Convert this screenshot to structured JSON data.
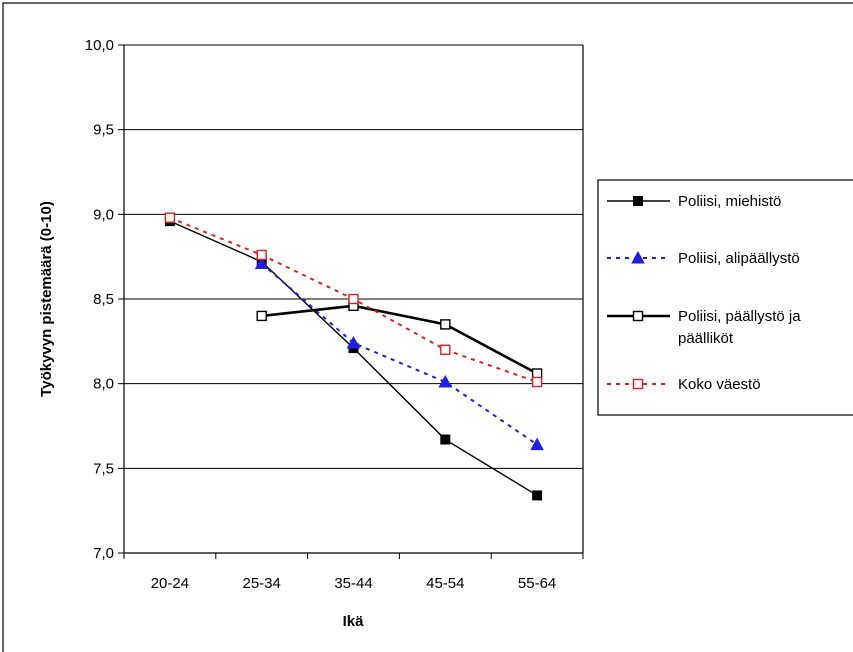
{
  "chart_data": {
    "type": "line",
    "title": "",
    "xlabel": "Ikä",
    "ylabel": "Työkyvyn pistemäärä (0-10)",
    "categories": [
      "20-24",
      "25-34",
      "35-44",
      "45-54",
      "55-64"
    ],
    "ylim": [
      7.0,
      10.0
    ],
    "yticks": [
      "7,0",
      "7,5",
      "8,0",
      "8,5",
      "9,0",
      "9,5",
      "10,0"
    ],
    "ytick_values": [
      7.0,
      7.5,
      8.0,
      8.5,
      9.0,
      9.5,
      10.0
    ],
    "grid": true,
    "legend_position": "right",
    "series": [
      {
        "name": "Poliisi, miehistö",
        "values": [
          8.96,
          8.72,
          8.21,
          7.67,
          7.34
        ],
        "color": "#000000",
        "line": "solid",
        "marker": "filled-square"
      },
      {
        "name": "Poliisi, alipäällystö",
        "values": [
          null,
          8.71,
          8.24,
          8.01,
          7.64
        ],
        "color": "#1f1fe0",
        "line": "dotted",
        "marker": "filled-triangle"
      },
      {
        "name_lines": [
          "Poliisi, päällystö ja",
          "päälliköt"
        ],
        "values": [
          null,
          8.4,
          8.46,
          8.35,
          8.06
        ],
        "color": "#000000",
        "line": "solid-thick",
        "marker": "open-square"
      },
      {
        "name": "Koko väestö",
        "values": [
          8.98,
          8.76,
          8.5,
          8.2,
          8.01
        ],
        "color": "#e02020",
        "line": "dotted",
        "marker": "open-square"
      }
    ]
  }
}
